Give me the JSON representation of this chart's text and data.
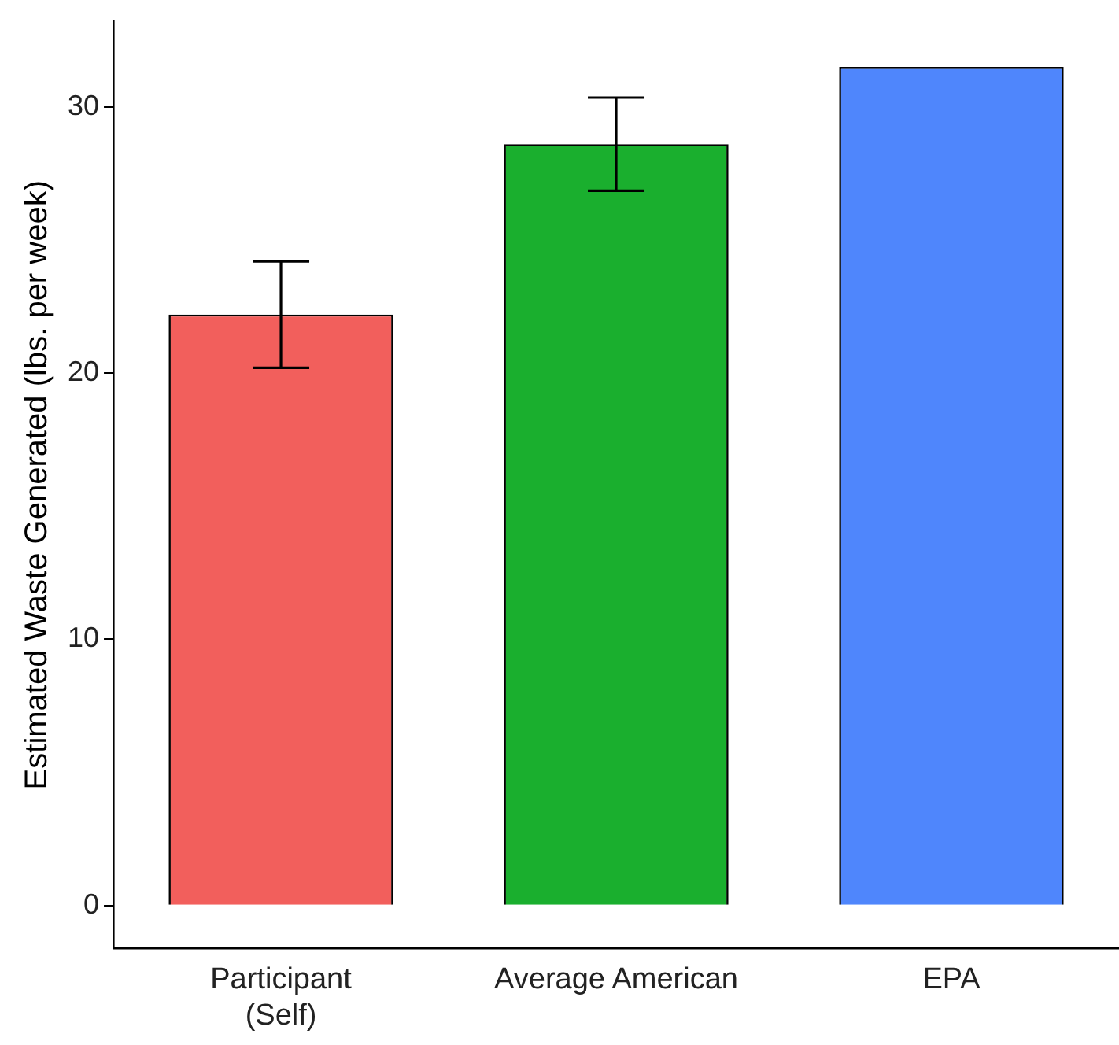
{
  "chart_data": {
    "type": "bar",
    "ylabel": "Estimated Waste Generated (lbs. per week)",
    "categories": [
      "Participant\n(Self)",
      "Average American",
      "EPA"
    ],
    "values": [
      22.2,
      28.6,
      31.5
    ],
    "colors": [
      "#f25f5c",
      "#1aaf2e",
      "#4f86fc"
    ],
    "errors": [
      2.0,
      1.75,
      null
    ],
    "ylim": [
      -1.6,
      33.2
    ],
    "yticks": [
      0,
      10,
      20,
      30
    ],
    "grid": false,
    "legend": false
  }
}
